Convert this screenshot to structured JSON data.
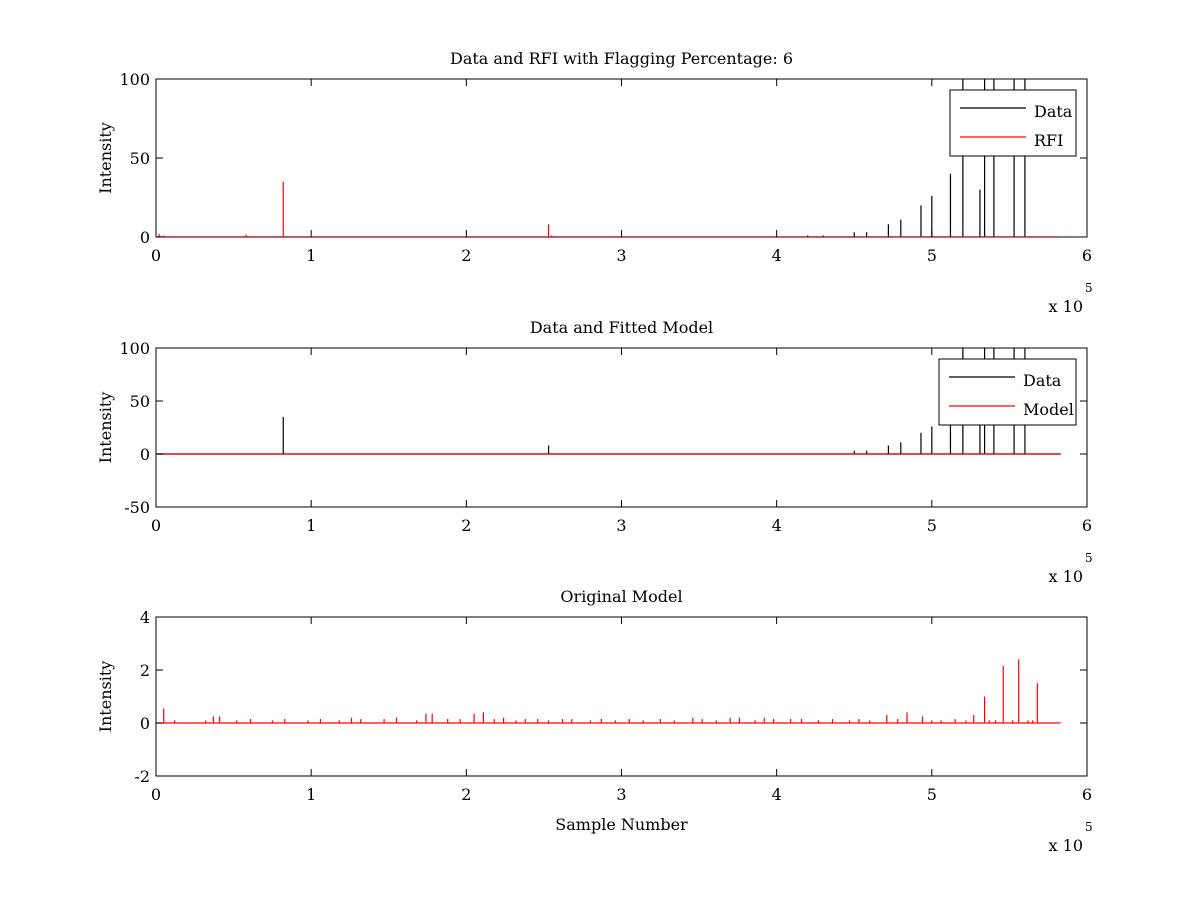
{
  "chart_data": [
    {
      "type": "line",
      "title": "Data and RFI with Flagging Percentage: 6",
      "xlabel": "",
      "ylabel": "Intensity",
      "xlim": [
        0,
        600000
      ],
      "ylim": [
        0,
        100
      ],
      "xticks": [
        0,
        1,
        2,
        3,
        4,
        5,
        6
      ],
      "yticks": [
        0,
        50,
        100
      ],
      "x_multiplier_label": "x 10",
      "x_multiplier_exp": "5",
      "grid": false,
      "legend_position": "top-right",
      "series": [
        {
          "name": "Data",
          "color": "#000000",
          "spikes": [
            [
              472000,
              8
            ],
            [
              480000,
              11
            ],
            [
              493000,
              20
            ],
            [
              500000,
              26
            ],
            [
              512000,
              40
            ],
            [
              520000,
              100
            ],
            [
              531000,
              30
            ],
            [
              534000,
              100
            ],
            [
              540000,
              100
            ],
            [
              553000,
              100
            ],
            [
              560000,
              100
            ],
            [
              450000,
              3
            ],
            [
              458000,
              3
            ],
            [
              430000,
              1
            ],
            [
              420000,
              1
            ]
          ]
        },
        {
          "name": "RFI",
          "color": "#ff0000",
          "spikes": [
            [
              2000,
              2
            ],
            [
              5000,
              1
            ],
            [
              58000,
              1.5
            ],
            [
              82000,
              35
            ],
            [
              253000,
              8
            ],
            [
              255000,
              1
            ]
          ]
        }
      ]
    },
    {
      "type": "line",
      "title": "Data and Fitted Model",
      "xlabel": "",
      "ylabel": "Intensity",
      "xlim": [
        0,
        600000
      ],
      "ylim": [
        -50,
        100
      ],
      "xticks": [
        0,
        1,
        2,
        3,
        4,
        5,
        6
      ],
      "yticks": [
        -50,
        0,
        50,
        100
      ],
      "x_multiplier_label": "x 10",
      "x_multiplier_exp": "5",
      "grid": false,
      "legend_position": "top-right",
      "series": [
        {
          "name": "Data",
          "color": "#000000",
          "spikes": [
            [
              82000,
              35
            ],
            [
              253000,
              8
            ],
            [
              450000,
              3
            ],
            [
              458000,
              3
            ],
            [
              472000,
              8
            ],
            [
              480000,
              11
            ],
            [
              493000,
              20
            ],
            [
              500000,
              26
            ],
            [
              512000,
              40
            ],
            [
              520000,
              100
            ],
            [
              531000,
              30
            ],
            [
              534000,
              100
            ],
            [
              540000,
              100
            ],
            [
              553000,
              100
            ],
            [
              560000,
              100
            ]
          ]
        },
        {
          "name": "Model",
          "color": "#ff0000",
          "spikes": []
        }
      ]
    },
    {
      "type": "line",
      "title": "Original Model",
      "xlabel": "Sample Number",
      "ylabel": "Intensity",
      "xlim": [
        0,
        600000
      ],
      "ylim": [
        -2,
        4
      ],
      "xticks": [
        0,
        1,
        2,
        3,
        4,
        5,
        6
      ],
      "yticks": [
        -2,
        0,
        2,
        4
      ],
      "x_multiplier_label": "x 10",
      "x_multiplier_exp": "5",
      "grid": false,
      "legend_position": "none",
      "series": [
        {
          "name": "",
          "color": "#ff0000",
          "spikes": [
            [
              5000,
              0.55
            ],
            [
              12000,
              0.1
            ],
            [
              32000,
              0.1
            ],
            [
              37000,
              0.25
            ],
            [
              41000,
              0.25
            ],
            [
              52000,
              0.1
            ],
            [
              61000,
              0.15
            ],
            [
              75000,
              0.1
            ],
            [
              83000,
              0.15
            ],
            [
              98000,
              0.1
            ],
            [
              106000,
              0.15
            ],
            [
              118000,
              0.1
            ],
            [
              126000,
              0.2
            ],
            [
              132000,
              0.15
            ],
            [
              147000,
              0.15
            ],
            [
              155000,
              0.2
            ],
            [
              168000,
              0.1
            ],
            [
              174000,
              0.35
            ],
            [
              178000,
              0.35
            ],
            [
              188000,
              0.15
            ],
            [
              196000,
              0.15
            ],
            [
              205000,
              0.35
            ],
            [
              211000,
              0.4
            ],
            [
              218000,
              0.15
            ],
            [
              224000,
              0.2
            ],
            [
              232000,
              0.1
            ],
            [
              238000,
              0.15
            ],
            [
              246000,
              0.15
            ],
            [
              253000,
              0.1
            ],
            [
              262000,
              0.15
            ],
            [
              268000,
              0.15
            ],
            [
              280000,
              0.1
            ],
            [
              287000,
              0.15
            ],
            [
              296000,
              0.1
            ],
            [
              305000,
              0.15
            ],
            [
              314000,
              0.1
            ],
            [
              325000,
              0.15
            ],
            [
              334000,
              0.1
            ],
            [
              346000,
              0.2
            ],
            [
              352000,
              0.15
            ],
            [
              361000,
              0.1
            ],
            [
              370000,
              0.2
            ],
            [
              376000,
              0.2
            ],
            [
              386000,
              0.1
            ],
            [
              392000,
              0.2
            ],
            [
              398000,
              0.15
            ],
            [
              409000,
              0.15
            ],
            [
              416000,
              0.15
            ],
            [
              427000,
              0.1
            ],
            [
              436000,
              0.15
            ],
            [
              447000,
              0.1
            ],
            [
              453000,
              0.15
            ],
            [
              460000,
              0.1
            ],
            [
              471000,
              0.3
            ],
            [
              478000,
              0.15
            ],
            [
              484000,
              0.4
            ],
            [
              494000,
              0.25
            ],
            [
              500000,
              0.1
            ],
            [
              506000,
              0.1
            ],
            [
              515000,
              0.15
            ],
            [
              522000,
              0.1
            ],
            [
              527000,
              0.3
            ],
            [
              534000,
              1.0
            ],
            [
              537000,
              0.1
            ],
            [
              541000,
              0.1
            ],
            [
              546000,
              2.15
            ],
            [
              552000,
              0.1
            ],
            [
              556000,
              2.4
            ],
            [
              562000,
              0.1
            ],
            [
              565000,
              0.1
            ],
            [
              568000,
              1.5
            ]
          ]
        }
      ]
    }
  ]
}
